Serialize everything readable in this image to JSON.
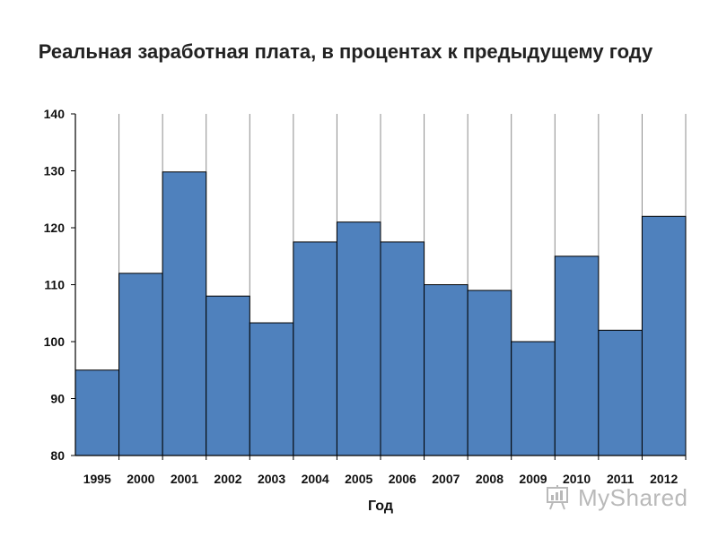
{
  "chart_data": {
    "type": "bar",
    "title": "Реальная заработная плата, в процентах к предыдущему году",
    "xlabel": "Год",
    "ylabel": "",
    "categories": [
      "1995",
      "2000",
      "2001",
      "2002",
      "2003",
      "2004",
      "2005",
      "2006",
      "2007",
      "2008",
      "2009",
      "2010",
      "2011",
      "2012"
    ],
    "values": [
      95,
      112,
      129.8,
      108,
      103.3,
      117.5,
      121,
      117.5,
      110,
      109,
      100,
      115,
      102,
      122
    ],
    "ylim": [
      80,
      140
    ],
    "yticks": [
      80,
      90,
      100,
      110,
      120,
      130,
      140
    ],
    "grid": "vertical",
    "legend": "none",
    "bar_color": "#4f81bd",
    "bar_edge_color": "#000000"
  },
  "watermark": {
    "text": "MyShared"
  }
}
